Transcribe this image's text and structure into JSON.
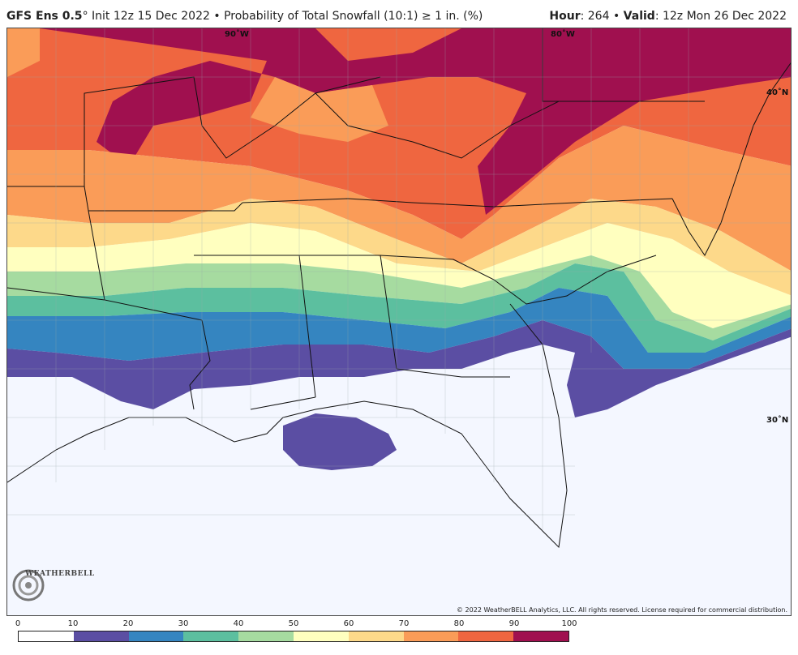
{
  "header": {
    "model": "GFS Ens 0.5",
    "degree": "°",
    "init": "Init 12z 15 Dec 2022",
    "bullet": "•",
    "product": "Probability of Total Snowfall (10:1) ≥ 1 in. (%)",
    "hour_label": "Hour",
    "hour_value": ": 264",
    "valid_label": "Valid",
    "valid_value": ": 12z Mon 26 Dec 2022"
  },
  "map": {
    "lat_labels": [
      "40˚N",
      "30˚N"
    ],
    "lon_labels": [
      "90˚W",
      "80˚W"
    ],
    "logo_text": "WEATHERBELL",
    "copyright": "© 2022 WeatherBELL Analytics, LLC. All rights reserved. License required for commercial distribution."
  },
  "legend": {
    "ticks": [
      "0",
      "10",
      "20",
      "30",
      "40",
      "50",
      "60",
      "70",
      "80",
      "90",
      "100"
    ],
    "colors": [
      "#ffffff",
      "#5b4ea3",
      "#3585c0",
      "#5cbf9f",
      "#a6dba0",
      "#ffffbf",
      "#fdd98a",
      "#fa9c58",
      "#ef6640",
      "#a0104f"
    ]
  },
  "colors": {
    "p0": "#f4f7ff",
    "p10": "#5b4ea3",
    "p20": "#3585c0",
    "p30": "#5cbf9f",
    "p40": "#a6dba0",
    "p50": "#ffffbf",
    "p60": "#fdd98a",
    "p70": "#fa9c58",
    "p80": "#ef6640",
    "p90": "#a0104f"
  }
}
